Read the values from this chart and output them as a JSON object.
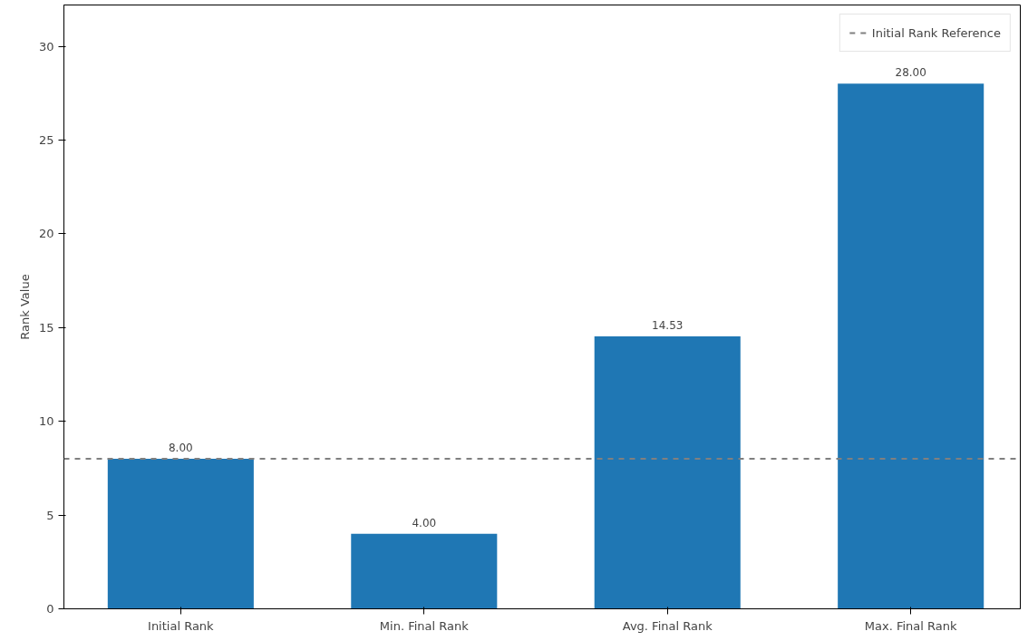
{
  "chart_data": {
    "type": "bar",
    "ylabel": "Rank Value",
    "categories": [
      "Initial Rank",
      "Min. Final Rank",
      "Avg. Final Rank",
      "Max. Final Rank"
    ],
    "series": [
      {
        "color": "#1f77b4",
        "values": [
          8,
          4,
          14.53,
          28
        ],
        "value_labels": [
          "8.00",
          "4.00",
          "14.53",
          "28.00"
        ]
      }
    ],
    "ylim": [
      0,
      32.2
    ],
    "yticks": [
      0,
      5,
      10,
      15,
      20,
      25,
      30
    ],
    "ref_lines": [
      {
        "axis": "y",
        "value": 8,
        "label": "Initial Rank Reference",
        "color": "#808080",
        "line_style": "dashed"
      }
    ],
    "grid": false,
    "legend": "top right"
  }
}
